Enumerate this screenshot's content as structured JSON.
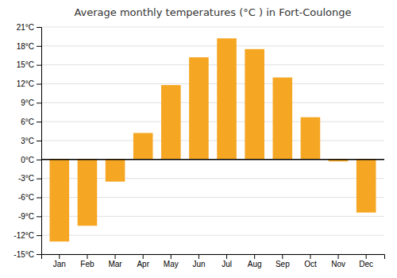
{
  "chart_data": {
    "type": "bar",
    "title": "Average monthly temperatures (°C ) in Fort-Coulonge",
    "categories": [
      "Jan",
      "Feb",
      "Mar",
      "Apr",
      "May",
      "Jun",
      "Jul",
      "Aug",
      "Sep",
      "Oct",
      "Nov",
      "Dec"
    ],
    "values": [
      -13,
      -10.5,
      -3.5,
      4.2,
      11.8,
      16.2,
      19.2,
      17.5,
      13.0,
      6.7,
      -0.3,
      -8.4
    ],
    "color": "#F5A623",
    "ylim": [
      -15,
      21
    ],
    "yticks": [
      {
        "value": -15,
        "label": "-15°C"
      },
      {
        "value": -12,
        "label": "-12°C"
      },
      {
        "value": -9,
        "label": "-9°C"
      },
      {
        "value": -6,
        "label": "-6°C"
      },
      {
        "value": -3,
        "label": "-3°C"
      },
      {
        "value": 0,
        "label": "0°C"
      },
      {
        "value": 3,
        "label": "3°C"
      },
      {
        "value": 6,
        "label": "6°C"
      },
      {
        "value": 9,
        "label": "9°C"
      },
      {
        "value": 12,
        "label": "12°C"
      },
      {
        "value": 15,
        "label": "15°C"
      },
      {
        "value": 18,
        "label": "18°C"
      },
      {
        "value": 21,
        "label": "21°C"
      }
    ],
    "grid": true
  }
}
